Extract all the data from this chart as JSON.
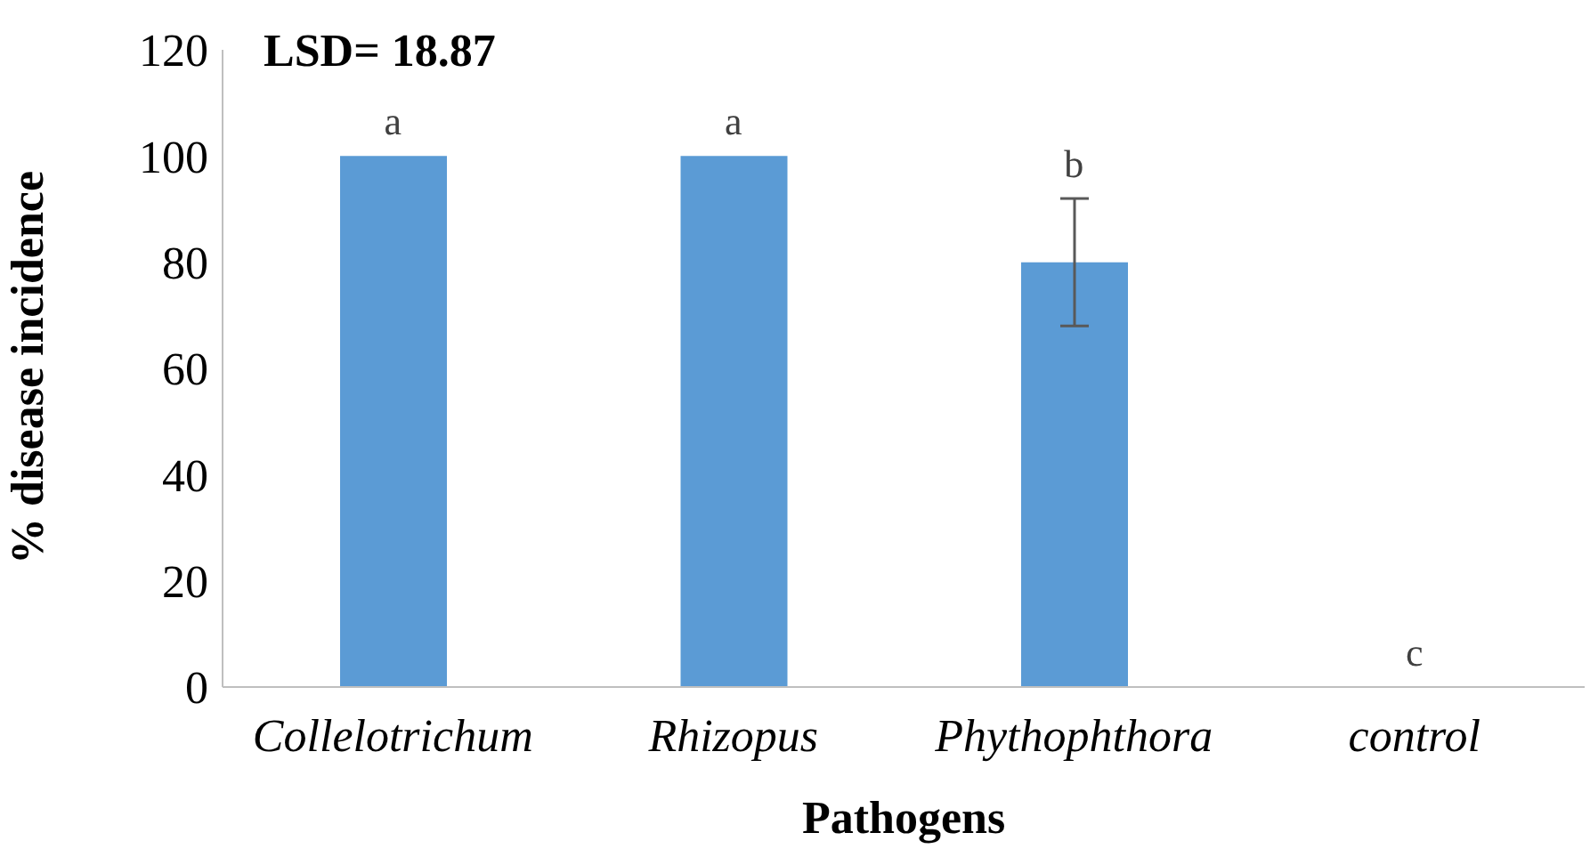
{
  "chart_data": {
    "type": "bar",
    "xlabel": "Pathogens",
    "ylabel": "% disease incidence",
    "categories": [
      "Collelotrichum",
      "Rhizopus",
      "Phythophthora",
      "control"
    ],
    "values": [
      100,
      100,
      80,
      0
    ],
    "errors": [
      0,
      0,
      12,
      0
    ],
    "color": "#5b9bd5",
    "ylim": [
      0,
      120
    ],
    "yticks": [
      0,
      20,
      40,
      60,
      80,
      100,
      120
    ],
    "grid": false,
    "legend": false,
    "annotations": [
      "LSD= 18.87",
      {
        "text": "a",
        "x": "Collelotrichum",
        "y": 100
      },
      {
        "text": "a",
        "x": "Rhizopus",
        "y": 100
      },
      {
        "text": "b",
        "x": "Phythophthora",
        "y": 92
      },
      {
        "text": "c",
        "x": "control",
        "y": 0
      }
    ]
  }
}
